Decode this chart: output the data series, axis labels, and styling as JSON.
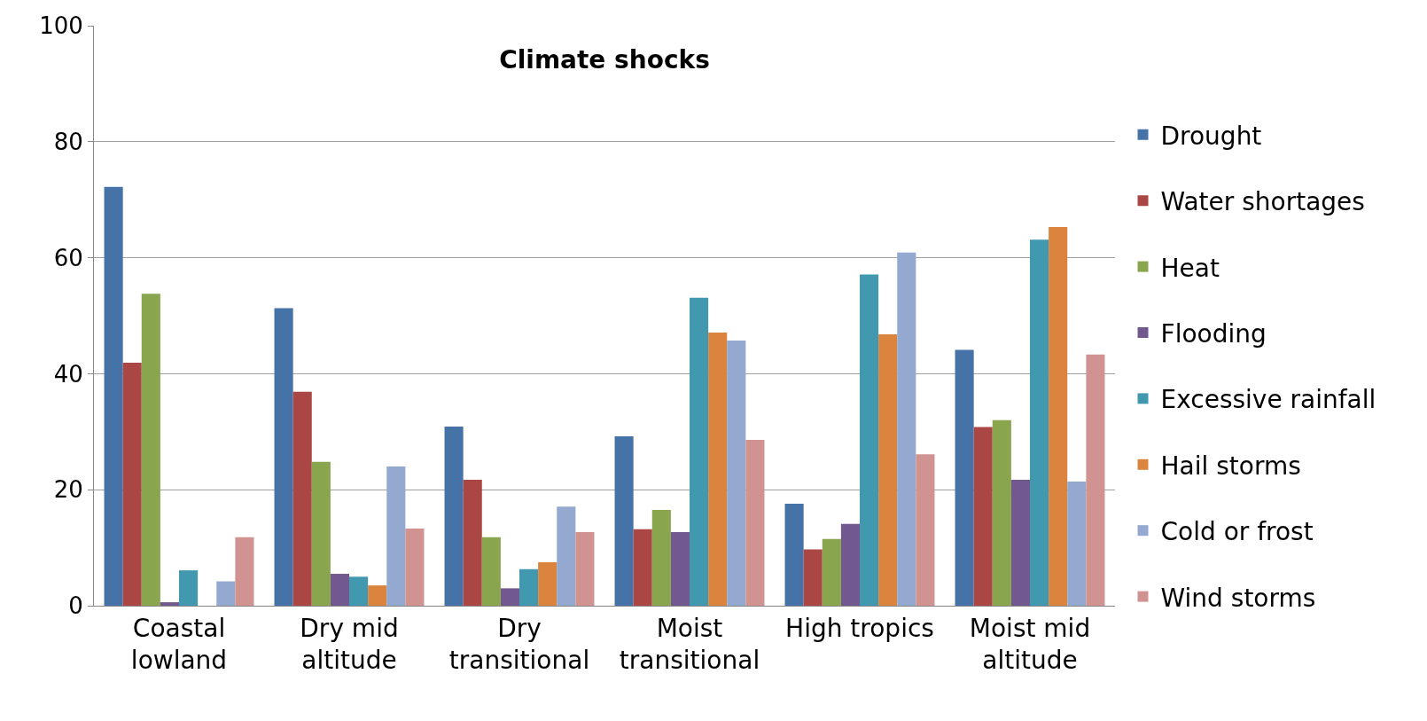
{
  "chart_data": {
    "type": "bar",
    "title": "Climate shocks",
    "categories": [
      "Coastal\nlowland",
      "Dry mid\naltitude",
      "Dry\ntransitional",
      "Moist\ntransitional",
      "High tropics",
      "Moist mid\naltitude"
    ],
    "series": [
      {
        "name": "Drought",
        "color": "#4572a7",
        "values": [
          72.2,
          51.3,
          30.9,
          29.2,
          17.6,
          44.1
        ]
      },
      {
        "name": "Water shortages",
        "color": "#aa4643",
        "values": [
          41.9,
          36.9,
          21.7,
          13.2,
          9.7,
          30.8
        ]
      },
      {
        "name": "Heat",
        "color": "#89a54e",
        "values": [
          53.8,
          24.8,
          11.8,
          16.5,
          11.5,
          32.0
        ]
      },
      {
        "name": "Flooding",
        "color": "#71588f",
        "values": [
          0.6,
          5.5,
          3.0,
          12.7,
          14.1,
          21.7
        ]
      },
      {
        "name": "Excessive rainfall",
        "color": "#4198af",
        "values": [
          6.1,
          5.0,
          6.3,
          53.1,
          57.1,
          63.1
        ]
      },
      {
        "name": "Hail storms",
        "color": "#db843d",
        "values": [
          0,
          3.5,
          7.5,
          47.1,
          46.8,
          65.3
        ]
      },
      {
        "name": "Cold or frost",
        "color": "#93a9cf",
        "values": [
          4.2,
          24.0,
          17.1,
          45.7,
          60.9,
          21.4
        ]
      },
      {
        "name": "Wind storms",
        "color": "#d19392",
        "values": [
          11.8,
          13.3,
          12.7,
          28.6,
          26.1,
          43.3
        ]
      }
    ],
    "ylim": [
      0,
      100
    ],
    "yticks": [
      0,
      20,
      40,
      60,
      80,
      100
    ],
    "grid": "y",
    "legend": "right"
  }
}
